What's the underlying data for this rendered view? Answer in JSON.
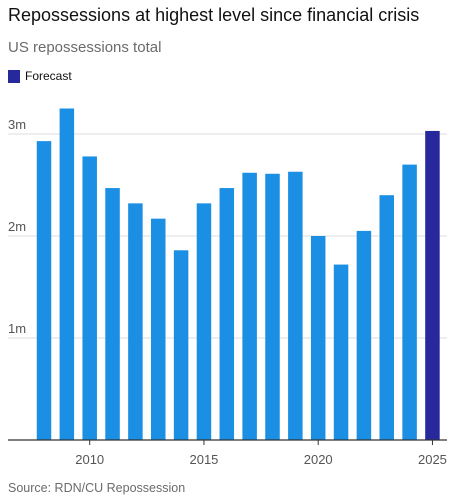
{
  "title": "Repossessions at highest level since financial crisis",
  "subtitle": "US repossessions total",
  "legend": {
    "label": "Forecast"
  },
  "source": "Source: RDN/CU Repossession",
  "colors": {
    "bar": "#1a8fe3",
    "forecast": "#27289b",
    "grid": "#dedede",
    "axis": "#333333"
  },
  "chart_data": {
    "type": "bar",
    "x": [
      2008,
      2009,
      2010,
      2011,
      2012,
      2013,
      2014,
      2015,
      2016,
      2017,
      2018,
      2019,
      2020,
      2021,
      2022,
      2023,
      2024,
      2025
    ],
    "values": [
      2.93,
      3.25,
      2.78,
      2.47,
      2.32,
      2.17,
      1.86,
      2.32,
      2.47,
      2.62,
      2.61,
      2.63,
      2.0,
      1.72,
      2.05,
      2.4,
      2.7,
      3.03
    ],
    "forecast": [
      false,
      false,
      false,
      false,
      false,
      false,
      false,
      false,
      false,
      false,
      false,
      false,
      false,
      false,
      false,
      false,
      false,
      true
    ],
    "unit": "millions",
    "ylim": [
      0,
      3.3
    ],
    "yticks": [
      1,
      2,
      3
    ],
    "ytick_labels": [
      "1m",
      "2m",
      "3m"
    ],
    "xticks": [
      2010,
      2015,
      2020,
      2025
    ],
    "xtick_labels": [
      "2010",
      "2015",
      "2020",
      "2025"
    ],
    "grid": true,
    "legend_position": "top-left"
  }
}
